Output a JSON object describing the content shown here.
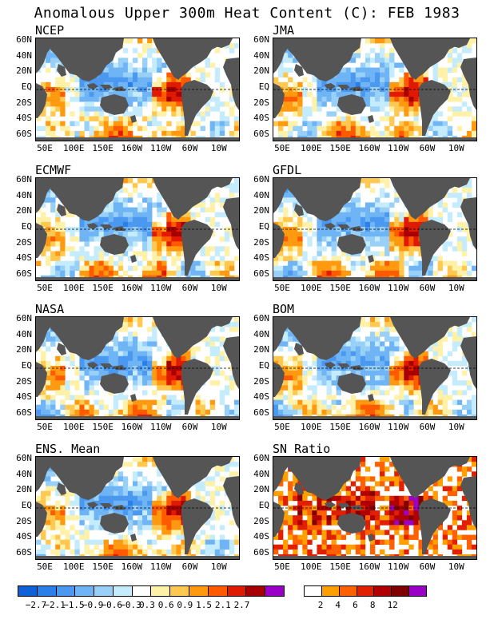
{
  "title": "Anomalous Upper 300m Heat Content (C): FEB 1983",
  "chart_data": {
    "type": "heatmap",
    "title": "Anomalous Upper 300m Heat Content (C): FEB 1983",
    "y_ticks": [
      "60N",
      "40N",
      "20N",
      "EQ",
      "20S",
      "40S",
      "60S"
    ],
    "x_ticks": [
      "50E",
      "100E",
      "150E",
      "160W",
      "110W",
      "60W",
      "10W"
    ],
    "panels": [
      {
        "name": "NCEP"
      },
      {
        "name": "JMA"
      },
      {
        "name": "ECMWF"
      },
      {
        "name": "GFDL"
      },
      {
        "name": "NASA"
      },
      {
        "name": "BOM"
      },
      {
        "name": "ENS. Mean"
      },
      {
        "name": "SN Ratio"
      }
    ],
    "anomaly_colorbar": {
      "colors": [
        "#1060d8",
        "#2a80e8",
        "#4a98f0",
        "#6fb4f4",
        "#98d0f8",
        "#c4ecfc",
        "#ffffff",
        "#fff2a8",
        "#ffc850",
        "#ff9a10",
        "#ff5a00",
        "#e01a00",
        "#a80000",
        "#9a00c8"
      ],
      "labels": [
        "-2.7",
        "-2.1",
        "-1.5",
        "-0.9",
        "-0.6",
        "-0.3",
        "0.3",
        "0.6",
        "0.9",
        "1.5",
        "2.1",
        "2.7"
      ]
    },
    "sn_colorbar": {
      "colors": [
        "#ffffff",
        "#ffa000",
        "#ff6000",
        "#e02000",
        "#b00000",
        "#800000",
        "#9a00c8"
      ],
      "labels": [
        "2",
        "4",
        "6",
        "8",
        "12"
      ]
    }
  }
}
